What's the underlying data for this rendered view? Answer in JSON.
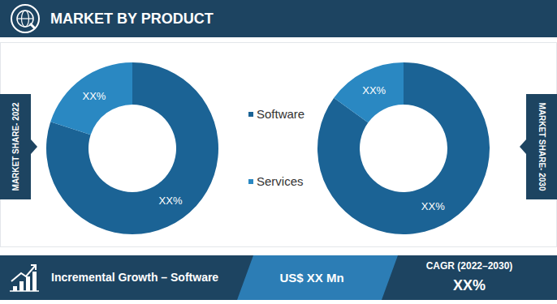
{
  "header": {
    "title": "MARKET BY PRODUCT"
  },
  "chart_data": [
    {
      "type": "pie",
      "title": "MARKET SHARE- 2022",
      "categories": [
        "Software",
        "Services"
      ],
      "values": [
        80,
        20
      ],
      "value_labels": [
        "XX%",
        "XX%"
      ],
      "colors": [
        "#1b6395",
        "#2a88c2"
      ],
      "data_labels": true,
      "legend": "right"
    },
    {
      "type": "pie",
      "title": "MARKET SHARE- 2030",
      "categories": [
        "Software",
        "Services"
      ],
      "values": [
        85,
        15
      ],
      "value_labels": [
        "XX%",
        "XX%"
      ],
      "colors": [
        "#1b6395",
        "#2a88c2"
      ],
      "data_labels": true
    }
  ],
  "footer": {
    "growth_label": "Incremental Growth – Software",
    "growth_value": "US$ XX Mn",
    "cagr_label": "CAGR (2022–2030)",
    "cagr_value": "XX%"
  }
}
